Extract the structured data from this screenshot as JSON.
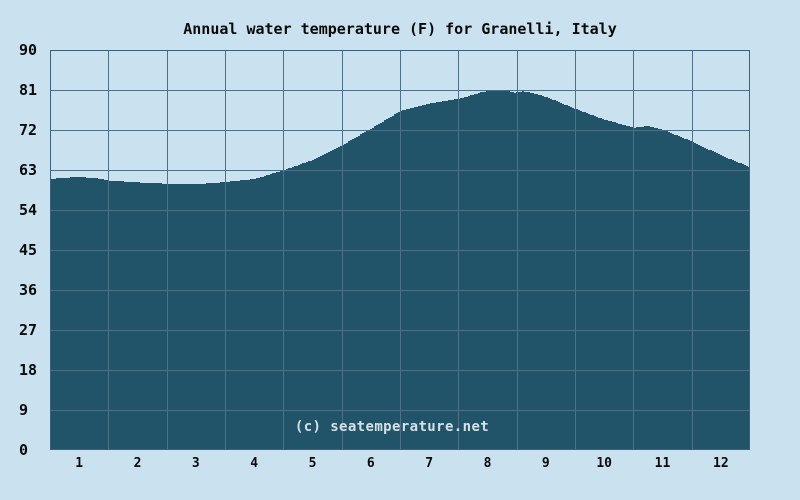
{
  "title": "Annual water temperature (F) for Granelli, Italy",
  "watermark": "(c) seatemperature.net",
  "colors": {
    "background": "#cae2ef",
    "area_fill": "#215369",
    "grid": "#4c7086",
    "border": "#3b617b",
    "text": "#0a0a0a",
    "watermark_text": "#d5e0e8"
  },
  "chart_data": {
    "type": "area",
    "title": "Annual water temperature (F) for Granelli, Italy",
    "xlabel": "",
    "ylabel": "",
    "grid": true,
    "legend": "none",
    "x_axis": {
      "ticks": [
        "1",
        "2",
        "3",
        "4",
        "5",
        "6",
        "7",
        "8",
        "9",
        "10",
        "11",
        "12"
      ],
      "range_months": [
        0,
        12
      ]
    },
    "y_axis": {
      "ticks": [
        90,
        81,
        72,
        63,
        54,
        45,
        36,
        27,
        18,
        9,
        0
      ],
      "range": [
        0,
        90
      ],
      "unit": "F"
    },
    "months": [
      1,
      2,
      3,
      4,
      5,
      6,
      7,
      8,
      9,
      10,
      11,
      12
    ],
    "monthly_avg_f": [
      61.4,
      60.2,
      59.9,
      61.0,
      65.3,
      72.4,
      78.0,
      80.8,
      79.4,
      74.3,
      72.0,
      66.2
    ],
    "curve_points": [
      [
        0.0,
        61.0
      ],
      [
        0.3,
        61.3
      ],
      [
        0.5,
        61.4
      ],
      [
        0.8,
        61.1
      ],
      [
        1.0,
        60.6
      ],
      [
        1.5,
        60.2
      ],
      [
        2.0,
        59.9
      ],
      [
        2.6,
        59.9
      ],
      [
        3.0,
        60.3
      ],
      [
        3.5,
        61.0
      ],
      [
        4.0,
        63.0
      ],
      [
        4.5,
        65.3
      ],
      [
        5.0,
        68.6
      ],
      [
        5.5,
        72.4
      ],
      [
        6.0,
        76.3
      ],
      [
        6.5,
        78.0
      ],
      [
        6.9,
        78.8
      ],
      [
        7.1,
        79.4
      ],
      [
        7.4,
        80.6
      ],
      [
        7.6,
        80.9
      ],
      [
        7.8,
        81.0
      ],
      [
        7.95,
        80.4
      ],
      [
        8.1,
        80.7
      ],
      [
        8.3,
        80.2
      ],
      [
        8.5,
        79.4
      ],
      [
        8.8,
        77.8
      ],
      [
        9.0,
        76.7
      ],
      [
        9.5,
        74.3
      ],
      [
        10.0,
        72.5
      ],
      [
        10.25,
        72.9
      ],
      [
        10.5,
        72.0
      ],
      [
        11.0,
        69.4
      ],
      [
        11.5,
        66.2
      ],
      [
        12.0,
        63.6
      ]
    ]
  }
}
